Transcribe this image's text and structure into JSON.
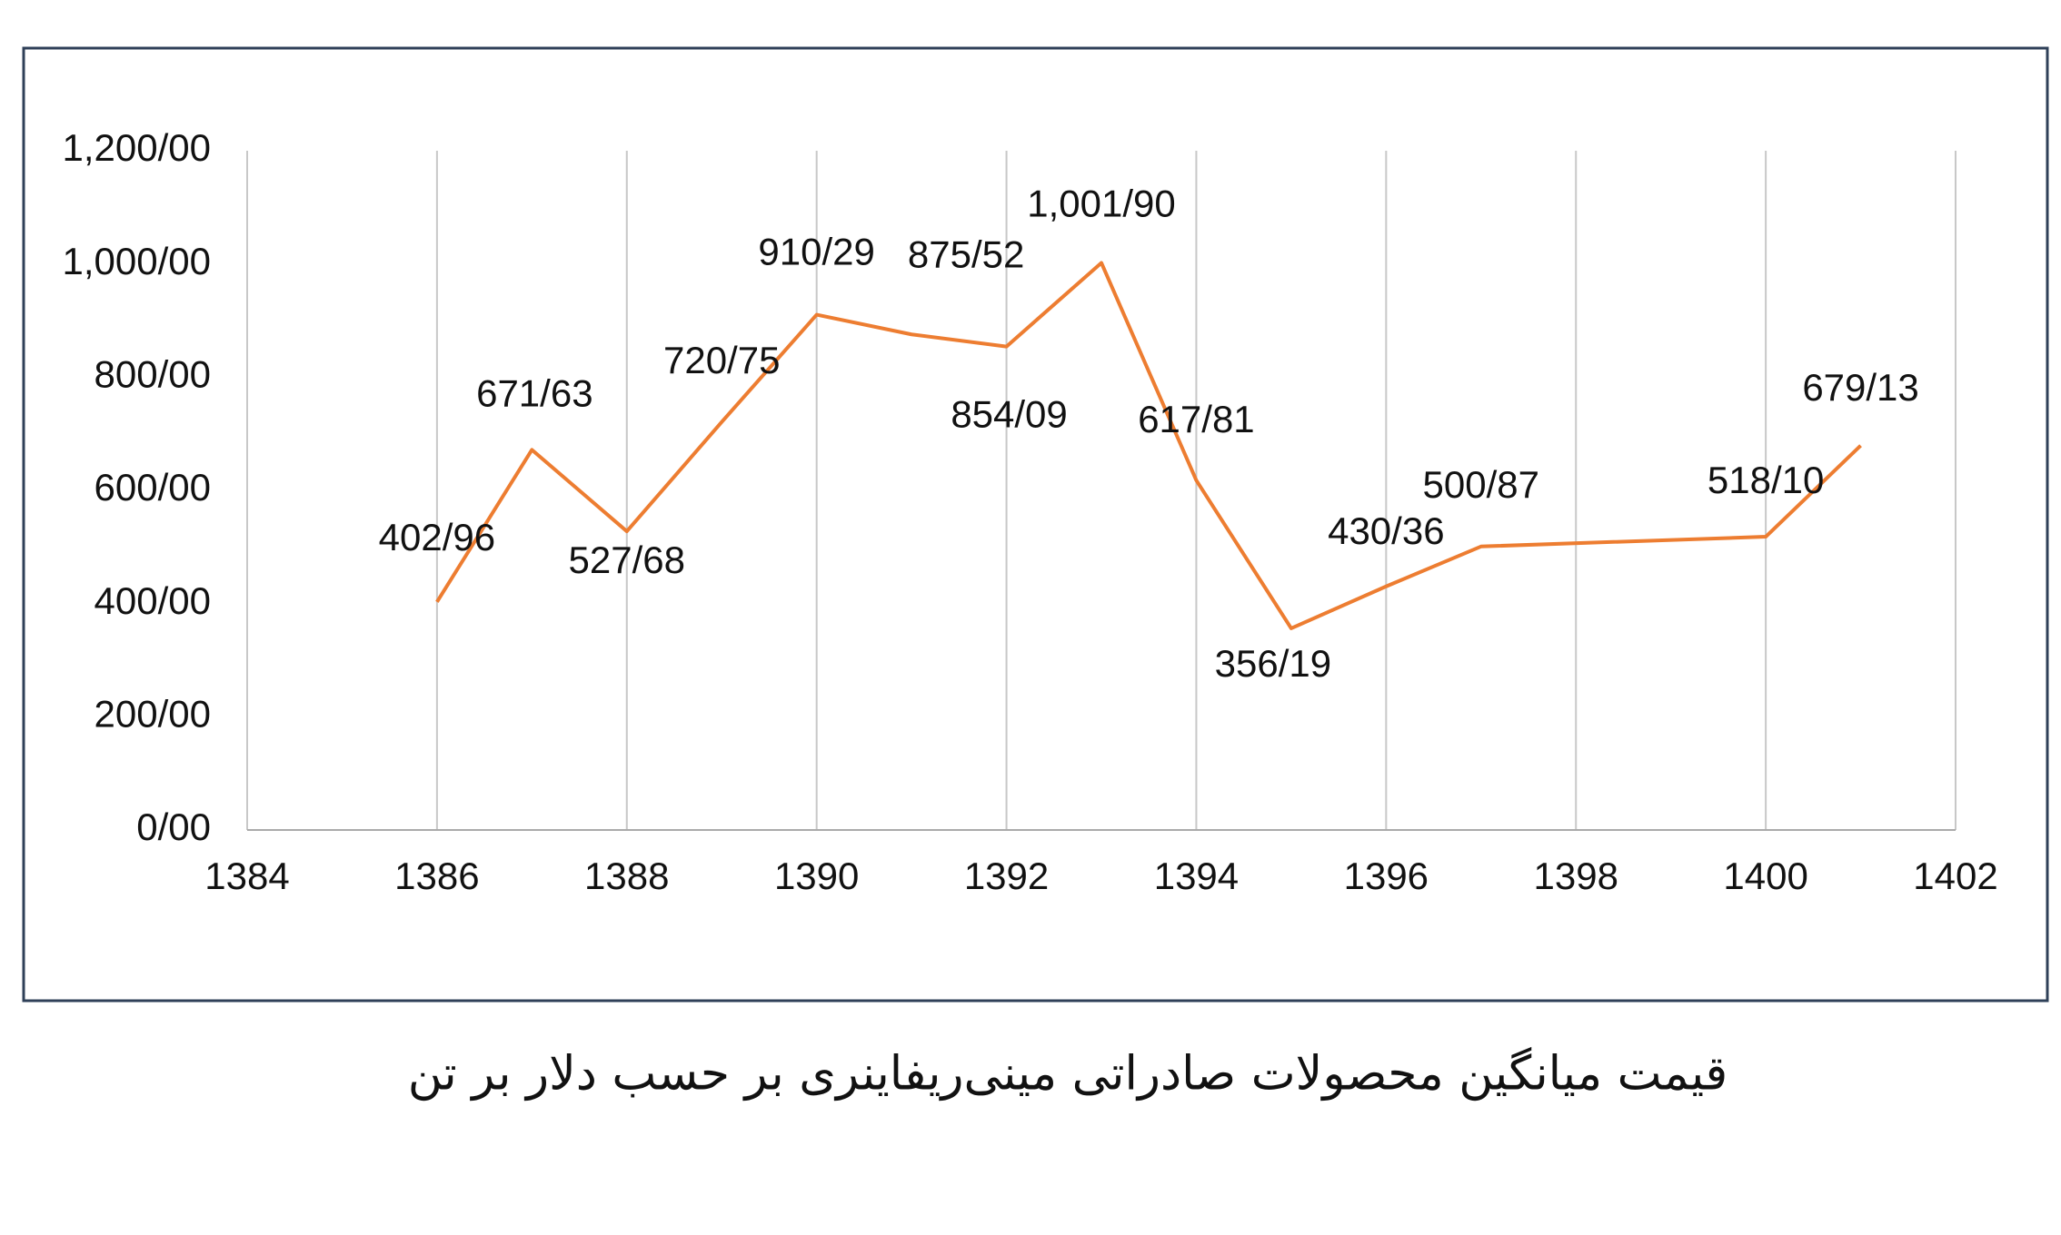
{
  "chart_data": {
    "type": "line",
    "caption": "قیمت میانگین محصولات صادراتی مینی‌ریفاینری بر حسب دلار بر تن",
    "x": [
      1386,
      1387,
      1388,
      1389,
      1390,
      1391,
      1392,
      1393,
      1394,
      1395,
      1396,
      1397,
      1400,
      1401
    ],
    "series": [
      {
        "color": "#ed7d31",
        "values": [
          402.96,
          671.63,
          527.68,
          720.75,
          910.29,
          875.52,
          854.09,
          1001.9,
          617.81,
          356.19,
          430.36,
          500.87,
          518.1,
          679.13
        ],
        "value_labels": [
          "402/96",
          "671/63",
          "527/68",
          "720/75",
          "910/29",
          "875/52",
          "854/09",
          "1,001/90",
          "617/81",
          "356/19",
          "430/36",
          "500/87",
          "518/10",
          "679/13"
        ]
      }
    ],
    "xlim": [
      1384,
      1402
    ],
    "xticks": [
      1384,
      1386,
      1388,
      1390,
      1392,
      1394,
      1396,
      1398,
      1400,
      1402
    ],
    "ylim": [
      0,
      1200
    ],
    "yticks": [
      {
        "value": 0,
        "label": "0/00"
      },
      {
        "value": 200,
        "label": "200/00"
      },
      {
        "value": 400,
        "label": "400/00"
      },
      {
        "value": 600,
        "label": "600/00"
      },
      {
        "value": 800,
        "label": "800/00"
      },
      {
        "value": 1000,
        "label": "1,000/00"
      },
      {
        "value": 1200,
        "label": "1,200/00"
      }
    ],
    "grid": "x"
  }
}
